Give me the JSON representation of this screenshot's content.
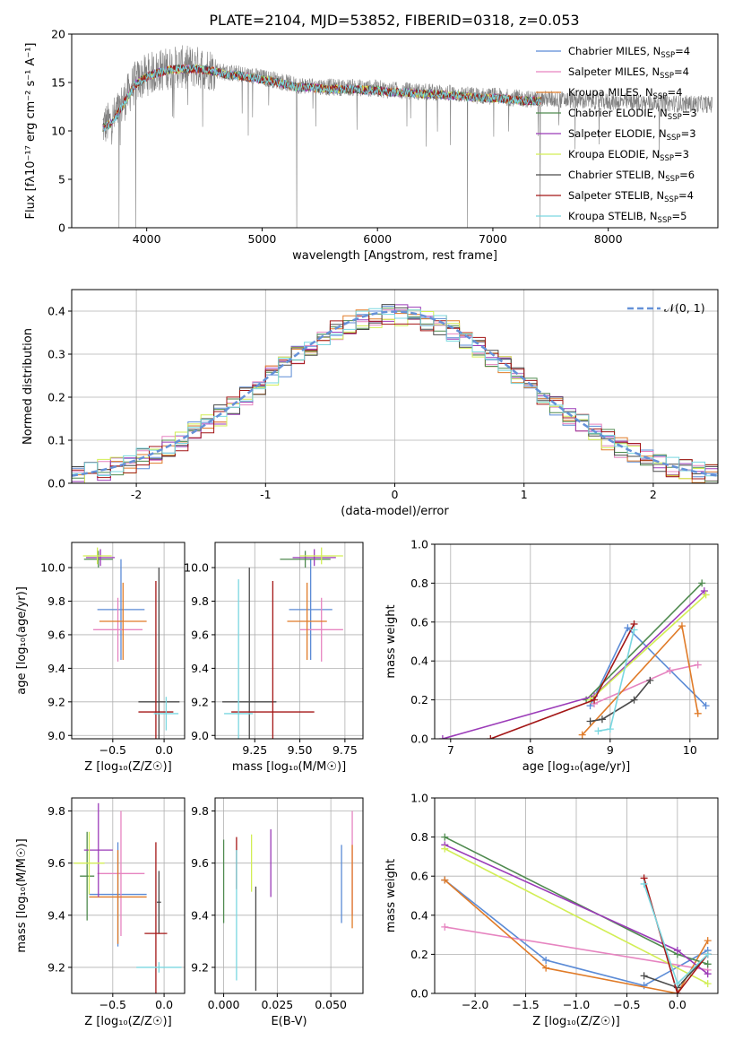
{
  "title": "PLATE=2104, MJD=53852, FIBERID=0318, z=0.053",
  "colors": {
    "Chabrier MILES": "#5b8bd6",
    "Salpeter MILES": "#e684c0",
    "Kroupa MILES": "#e07b28",
    "Chabrier ELODIE": "#4f8a4f",
    "Salpeter ELODIE": "#9b3bb8",
    "Kroupa ELODIE": "#d2ee55",
    "Chabrier STELIB": "#4a4a4a",
    "Salpeter STELIB": "#a31616",
    "Kroupa STELIB": "#7ad7e0",
    "data": "#808080",
    "normal": "#6591d8"
  },
  "chart_data": [
    {
      "id": "spectrum",
      "type": "line",
      "xlabel": "wavelength [Angstrom, rest frame]",
      "ylabel": "Flux [fλ10⁻¹⁷ erg cm⁻² s⁻¹ A⁻¹]",
      "xlim": [
        3350,
        8950
      ],
      "ylim": [
        0,
        20
      ],
      "xticks": [
        4000,
        5000,
        6000,
        7000,
        8000
      ],
      "yticks": [
        0,
        5,
        10,
        15,
        20
      ],
      "legend_position": "top-right",
      "legend": [
        {
          "name": "Chabrier MILES",
          "label": "Chabrier MILES, N",
          "sub": "SSP",
          "tail": "=4"
        },
        {
          "name": "Salpeter MILES",
          "label": "Salpeter MILES, N",
          "sub": "SSP",
          "tail": "=4"
        },
        {
          "name": "Kroupa MILES",
          "label": "Kroupa MILES, N",
          "sub": "SSP",
          "tail": "=4"
        },
        {
          "name": "Chabrier ELODIE",
          "label": "Chabrier ELODIE, N",
          "sub": "SSP",
          "tail": "=3"
        },
        {
          "name": "Salpeter ELODIE",
          "label": "Salpeter ELODIE, N",
          "sub": "SSP",
          "tail": "=3"
        },
        {
          "name": "Kroupa ELODIE",
          "label": "Kroupa ELODIE, N",
          "sub": "SSP",
          "tail": "=3"
        },
        {
          "name": "Chabrier STELIB",
          "label": "Chabrier STELIB, N",
          "sub": "SSP",
          "tail": "=6"
        },
        {
          "name": "Salpeter STELIB",
          "label": "Salpeter STELIB, N",
          "sub": "SSP",
          "tail": "=4"
        },
        {
          "name": "Kroupa STELIB",
          "label": "Kroupa STELIB, N",
          "sub": "SSP",
          "tail": "=5"
        }
      ],
      "continuum": {
        "x": [
          3620,
          3700,
          3800,
          3900,
          4000,
          4100,
          4200,
          4300,
          4400,
          4500,
          4600,
          4700,
          4800,
          4900,
          5000,
          5100,
          5200,
          5300,
          5400,
          5500,
          5600,
          5700,
          5800,
          5900,
          6000,
          6100,
          6200,
          6300,
          6400,
          6500,
          6600,
          6700,
          6800,
          6900,
          7000,
          7100,
          7200,
          7300,
          7400,
          7500,
          7600,
          7700,
          7800,
          7900,
          8000,
          8100,
          8200,
          8300,
          8400,
          8500,
          8600,
          8700,
          8800,
          8900
        ],
        "y": [
          10.5,
          11.0,
          13.0,
          15.0,
          15.8,
          16.2,
          16.5,
          16.6,
          16.6,
          16.5,
          16.3,
          16.0,
          15.9,
          15.7,
          15.5,
          15.3,
          15.0,
          14.7,
          14.7,
          14.6,
          14.5,
          14.5,
          14.5,
          14.4,
          14.4,
          14.2,
          14.2,
          14.1,
          14.0,
          14.0,
          13.9,
          13.8,
          13.7,
          13.6,
          13.6,
          13.5,
          13.4,
          13.3,
          13.3,
          13.3,
          13.2,
          13.2,
          13.1,
          13.1,
          13.0,
          13.0,
          13.0,
          12.9,
          12.9,
          12.9,
          12.8,
          12.8,
          12.8,
          12.7
        ]
      },
      "absorption_lines": [
        {
          "x": 3760,
          "y": 0
        },
        {
          "x": 3905,
          "y": 0
        },
        {
          "x": 5300,
          "y": 0
        },
        {
          "x": 6780,
          "y": 0
        },
        {
          "x": 7410,
          "y": 0
        }
      ]
    },
    {
      "id": "residuals",
      "type": "bar",
      "xlabel": "(data-model)/error",
      "ylabel": "Normed distribution",
      "xlim": [
        -2.5,
        2.5
      ],
      "ylim": [
        0,
        0.45
      ],
      "xticks": [
        -2,
        -1,
        0,
        1,
        2
      ],
      "yticks": [
        0.0,
        0.1,
        0.2,
        0.3,
        0.4
      ],
      "legend_position": "top-right",
      "normal_label": "𝒩(0, 1)",
      "bin_width": 0.1
    },
    {
      "id": "age_vs_Z",
      "type": "scatter",
      "xlabel": "Z [log₁₀(Z/Z☉)]",
      "ylabel": "age  [log₁₀(age/yr)]",
      "xlim": [
        -0.9,
        0.2
      ],
      "ylim": [
        8.98,
        10.15
      ],
      "xticks": [
        -0.5,
        0.0
      ],
      "yticks": [
        9.0,
        9.2,
        9.4,
        9.6,
        9.8,
        10.0
      ],
      "points": [
        {
          "name": "Chabrier MILES",
          "x": -0.42,
          "xerr": 0.23,
          "y": 9.75,
          "yerr": 0.3
        },
        {
          "name": "Salpeter MILES",
          "x": -0.45,
          "xerr": 0.24,
          "y": 9.63,
          "yerr": 0.19
        },
        {
          "name": "Kroupa MILES",
          "x": -0.4,
          "xerr": 0.23,
          "y": 9.68,
          "yerr": 0.23
        },
        {
          "name": "Chabrier ELODIE",
          "x": -0.64,
          "xerr": 0.14,
          "y": 10.05,
          "yerr": 0.05
        },
        {
          "name": "Salpeter ELODIE",
          "x": -0.62,
          "xerr": 0.14,
          "y": 10.06,
          "yerr": 0.05
        },
        {
          "name": "Kroupa ELODIE",
          "x": -0.65,
          "xerr": 0.14,
          "y": 10.07,
          "yerr": 0.05
        },
        {
          "name": "Chabrier STELIB",
          "x": -0.05,
          "xerr": 0.2,
          "y": 9.2,
          "yerr": 0.8
        },
        {
          "name": "Salpeter STELIB",
          "x": -0.08,
          "xerr": 0.17,
          "y": 9.14,
          "yerr": 0.78
        },
        {
          "name": "Kroupa STELIB",
          "x": 0.02,
          "xerr": 0.12,
          "y": 9.13,
          "yerr": 0.1
        }
      ]
    },
    {
      "id": "age_vs_mass",
      "type": "scatter",
      "xlabel": "mass [log₁₀(M/M☉)]",
      "xlim": [
        9.03,
        9.85
      ],
      "ylim": [
        8.98,
        10.15
      ],
      "xticks": [
        9.25,
        9.5,
        9.75
      ],
      "yticks": [
        9.0,
        9.2,
        9.4,
        9.6,
        9.8,
        10.0
      ],
      "points": [
        {
          "name": "Chabrier MILES",
          "x": 9.56,
          "xerr": 0.12,
          "y": 9.75,
          "yerr": 0.3
        },
        {
          "name": "Salpeter MILES",
          "x": 9.62,
          "xerr": 0.12,
          "y": 9.63,
          "yerr": 0.19
        },
        {
          "name": "Kroupa MILES",
          "x": 9.54,
          "xerr": 0.11,
          "y": 9.68,
          "yerr": 0.23
        },
        {
          "name": "Chabrier ELODIE",
          "x": 9.53,
          "xerr": 0.14,
          "y": 10.05,
          "yerr": 0.05
        },
        {
          "name": "Salpeter ELODIE",
          "x": 9.58,
          "xerr": 0.12,
          "y": 10.06,
          "yerr": 0.05
        },
        {
          "name": "Kroupa ELODIE",
          "x": 9.62,
          "xerr": 0.12,
          "y": 10.07,
          "yerr": 0.05
        },
        {
          "name": "Chabrier STELIB",
          "x": 9.22,
          "xerr": 0.15,
          "y": 9.2,
          "yerr": 0.8
        },
        {
          "name": "Salpeter STELIB",
          "x": 9.35,
          "xerr": 0.23,
          "y": 9.14,
          "yerr": 0.78
        },
        {
          "name": "Kroupa STELIB",
          "x": 9.16,
          "xerr": 0.08,
          "y": 9.13,
          "yerr": 0.8
        }
      ]
    },
    {
      "id": "weight_vs_age",
      "type": "line",
      "xlabel": "age  [log₁₀(age/yr)]",
      "ylabel": "mass weight",
      "xlim": [
        6.8,
        10.35
      ],
      "ylim": [
        0,
        1.0
      ],
      "xticks": [
        7,
        8,
        9,
        10
      ],
      "yticks": [
        0.0,
        0.2,
        0.4,
        0.6,
        0.8,
        1.0
      ],
      "series": [
        {
          "name": "Chabrier MILES",
          "x": [
            8.75,
            9.22,
            10.2
          ],
          "y": [
            0.17,
            0.57,
            0.17
          ]
        },
        {
          "name": "Salpeter MILES",
          "x": [
            8.8,
            9.75,
            10.1
          ],
          "y": [
            0.18,
            0.35,
            0.38
          ]
        },
        {
          "name": "Kroupa MILES",
          "x": [
            8.65,
            9.9,
            10.1
          ],
          "y": [
            0.02,
            0.58,
            0.13
          ]
        },
        {
          "name": "Chabrier ELODIE",
          "x": [
            8.7,
            10.15
          ],
          "y": [
            0.2,
            0.8
          ]
        },
        {
          "name": "Salpeter ELODIE",
          "x": [
            6.9,
            8.8,
            10.18
          ],
          "y": [
            0.0,
            0.22,
            0.76
          ]
        },
        {
          "name": "Kroupa ELODIE",
          "x": [
            8.75,
            10.2
          ],
          "y": [
            0.2,
            0.74
          ]
        },
        {
          "name": "Chabrier STELIB",
          "x": [
            8.75,
            8.9,
            9.3,
            9.5
          ],
          "y": [
            0.09,
            0.1,
            0.2,
            0.3
          ]
        },
        {
          "name": "Salpeter STELIB",
          "x": [
            7.5,
            8.8,
            9.3
          ],
          "y": [
            0.0,
            0.2,
            0.59
          ]
        },
        {
          "name": "Kroupa STELIB",
          "x": [
            8.85,
            9.0,
            9.3
          ],
          "y": [
            0.04,
            0.05,
            0.56
          ]
        }
      ]
    },
    {
      "id": "mass_vs_Z",
      "type": "scatter",
      "xlabel": "Z [log₁₀(Z/Z☉)]",
      "ylabel": "mass [log₁₀(M/M☉)]",
      "xlim": [
        -0.9,
        0.2
      ],
      "ylim": [
        9.1,
        9.85
      ],
      "xticks": [
        -0.5,
        0.0
      ],
      "yticks": [
        9.2,
        9.4,
        9.6,
        9.8
      ],
      "points": [
        {
          "name": "Chabrier MILES",
          "x": -0.45,
          "xerr": 0.28,
          "y": 9.48,
          "yerr": 0.2
        },
        {
          "name": "Salpeter MILES",
          "x": -0.42,
          "xerr": 0.23,
          "y": 9.56,
          "yerr": 0.24
        },
        {
          "name": "Kroupa MILES",
          "x": -0.45,
          "xerr": 0.28,
          "y": 9.47,
          "yerr": 0.18
        },
        {
          "name": "Chabrier ELODIE",
          "x": -0.75,
          "xerr": 0.07,
          "y": 9.55,
          "yerr": 0.17
        },
        {
          "name": "Salpeter ELODIE",
          "x": -0.64,
          "xerr": 0.14,
          "y": 9.65,
          "yerr": 0.18
        },
        {
          "name": "Kroupa ELODIE",
          "x": -0.73,
          "xerr": 0.15,
          "y": 9.6,
          "yerr": 0.12
        },
        {
          "name": "Chabrier STELIB",
          "x": -0.05,
          "xerr": 0.02,
          "y": 9.45,
          "yerr": 0.12
        },
        {
          "name": "Salpeter STELIB",
          "x": -0.08,
          "xerr": 0.11,
          "y": 9.33,
          "yerr": 0.35
        },
        {
          "name": "Kroupa STELIB",
          "x": -0.05,
          "xerr": 0.22,
          "y": 9.2,
          "yerr": 0.02
        }
      ]
    },
    {
      "id": "mass_vs_EBV",
      "type": "scatter",
      "xlabel": "E(B-V)",
      "xlim": [
        -0.004,
        0.065
      ],
      "ylim": [
        9.1,
        9.85
      ],
      "xticks": [
        0.0,
        0.025,
        0.05
      ],
      "xtick_labels": [
        "0.000",
        "0.025",
        "0.050"
      ],
      "yticks": [
        9.2,
        9.4,
        9.6,
        9.8
      ],
      "points": [
        {
          "name": "Chabrier MILES",
          "x": 0.055,
          "xerr": 0,
          "y": 9.52,
          "yerr": 0.15
        },
        {
          "name": "Salpeter MILES",
          "x": 0.06,
          "xerr": 0,
          "y": 9.6,
          "yerr": 0.2
        },
        {
          "name": "Kroupa MILES",
          "x": 0.06,
          "xerr": 0,
          "y": 9.51,
          "yerr": 0.16
        },
        {
          "name": "Chabrier ELODIE",
          "x": 0.0,
          "xerr": 0,
          "y": 9.53,
          "yerr": 0.16
        },
        {
          "name": "Salpeter ELODIE",
          "x": 0.022,
          "xerr": 0,
          "y": 9.6,
          "yerr": 0.13
        },
        {
          "name": "Kroupa ELODIE",
          "x": 0.013,
          "xerr": 0,
          "y": 9.6,
          "yerr": 0.11
        },
        {
          "name": "Chabrier STELIB",
          "x": 0.015,
          "xerr": 0,
          "y": 9.31,
          "yerr": 0.2
        },
        {
          "name": "Salpeter STELIB",
          "x": 0.006,
          "xerr": 0,
          "y": 9.6,
          "yerr": 0.1
        },
        {
          "name": "Kroupa STELIB",
          "x": 0.006,
          "xerr": 0,
          "y": 9.4,
          "yerr": 0.25
        }
      ]
    },
    {
      "id": "weight_vs_Z",
      "type": "line",
      "xlabel": "Z [log₁₀(Z/Z☉)]",
      "ylabel": "mass weight",
      "xlim": [
        -2.4,
        0.4
      ],
      "ylim": [
        0,
        1.0
      ],
      "xticks": [
        -2.0,
        -1.5,
        -1.0,
        -0.5,
        0.0
      ],
      "yticks": [
        0.0,
        0.2,
        0.4,
        0.6,
        0.8,
        1.0
      ],
      "series": [
        {
          "name": "Chabrier MILES",
          "x": [
            -2.3,
            -1.3,
            -0.33,
            0.3
          ],
          "y": [
            0.58,
            0.17,
            0.04,
            0.22
          ]
        },
        {
          "name": "Salpeter MILES",
          "x": [
            -2.3,
            0.3
          ],
          "y": [
            0.34,
            0.12
          ]
        },
        {
          "name": "Kroupa MILES",
          "x": [
            -2.3,
            -1.3,
            0.0,
            0.3
          ],
          "y": [
            0.58,
            0.13,
            0.0,
            0.27
          ]
        },
        {
          "name": "Chabrier ELODIE",
          "x": [
            -2.3,
            0.0,
            0.3
          ],
          "y": [
            0.8,
            0.2,
            0.15
          ]
        },
        {
          "name": "Salpeter ELODIE",
          "x": [
            -2.3,
            0.0,
            0.3
          ],
          "y": [
            0.76,
            0.22,
            0.1
          ]
        },
        {
          "name": "Kroupa ELODIE",
          "x": [
            -2.3,
            0.3
          ],
          "y": [
            0.74,
            0.05
          ]
        },
        {
          "name": "Chabrier STELIB",
          "x": [
            -0.33,
            0.0,
            0.3
          ],
          "y": [
            0.09,
            0.03,
            0.2
          ]
        },
        {
          "name": "Salpeter STELIB",
          "x": [
            -0.33,
            0.0,
            0.3
          ],
          "y": [
            0.59,
            0.0,
            0.2
          ]
        },
        {
          "name": "Kroupa STELIB",
          "x": [
            -0.33,
            0.0,
            0.3
          ],
          "y": [
            0.56,
            0.05,
            0.2
          ]
        }
      ]
    }
  ]
}
